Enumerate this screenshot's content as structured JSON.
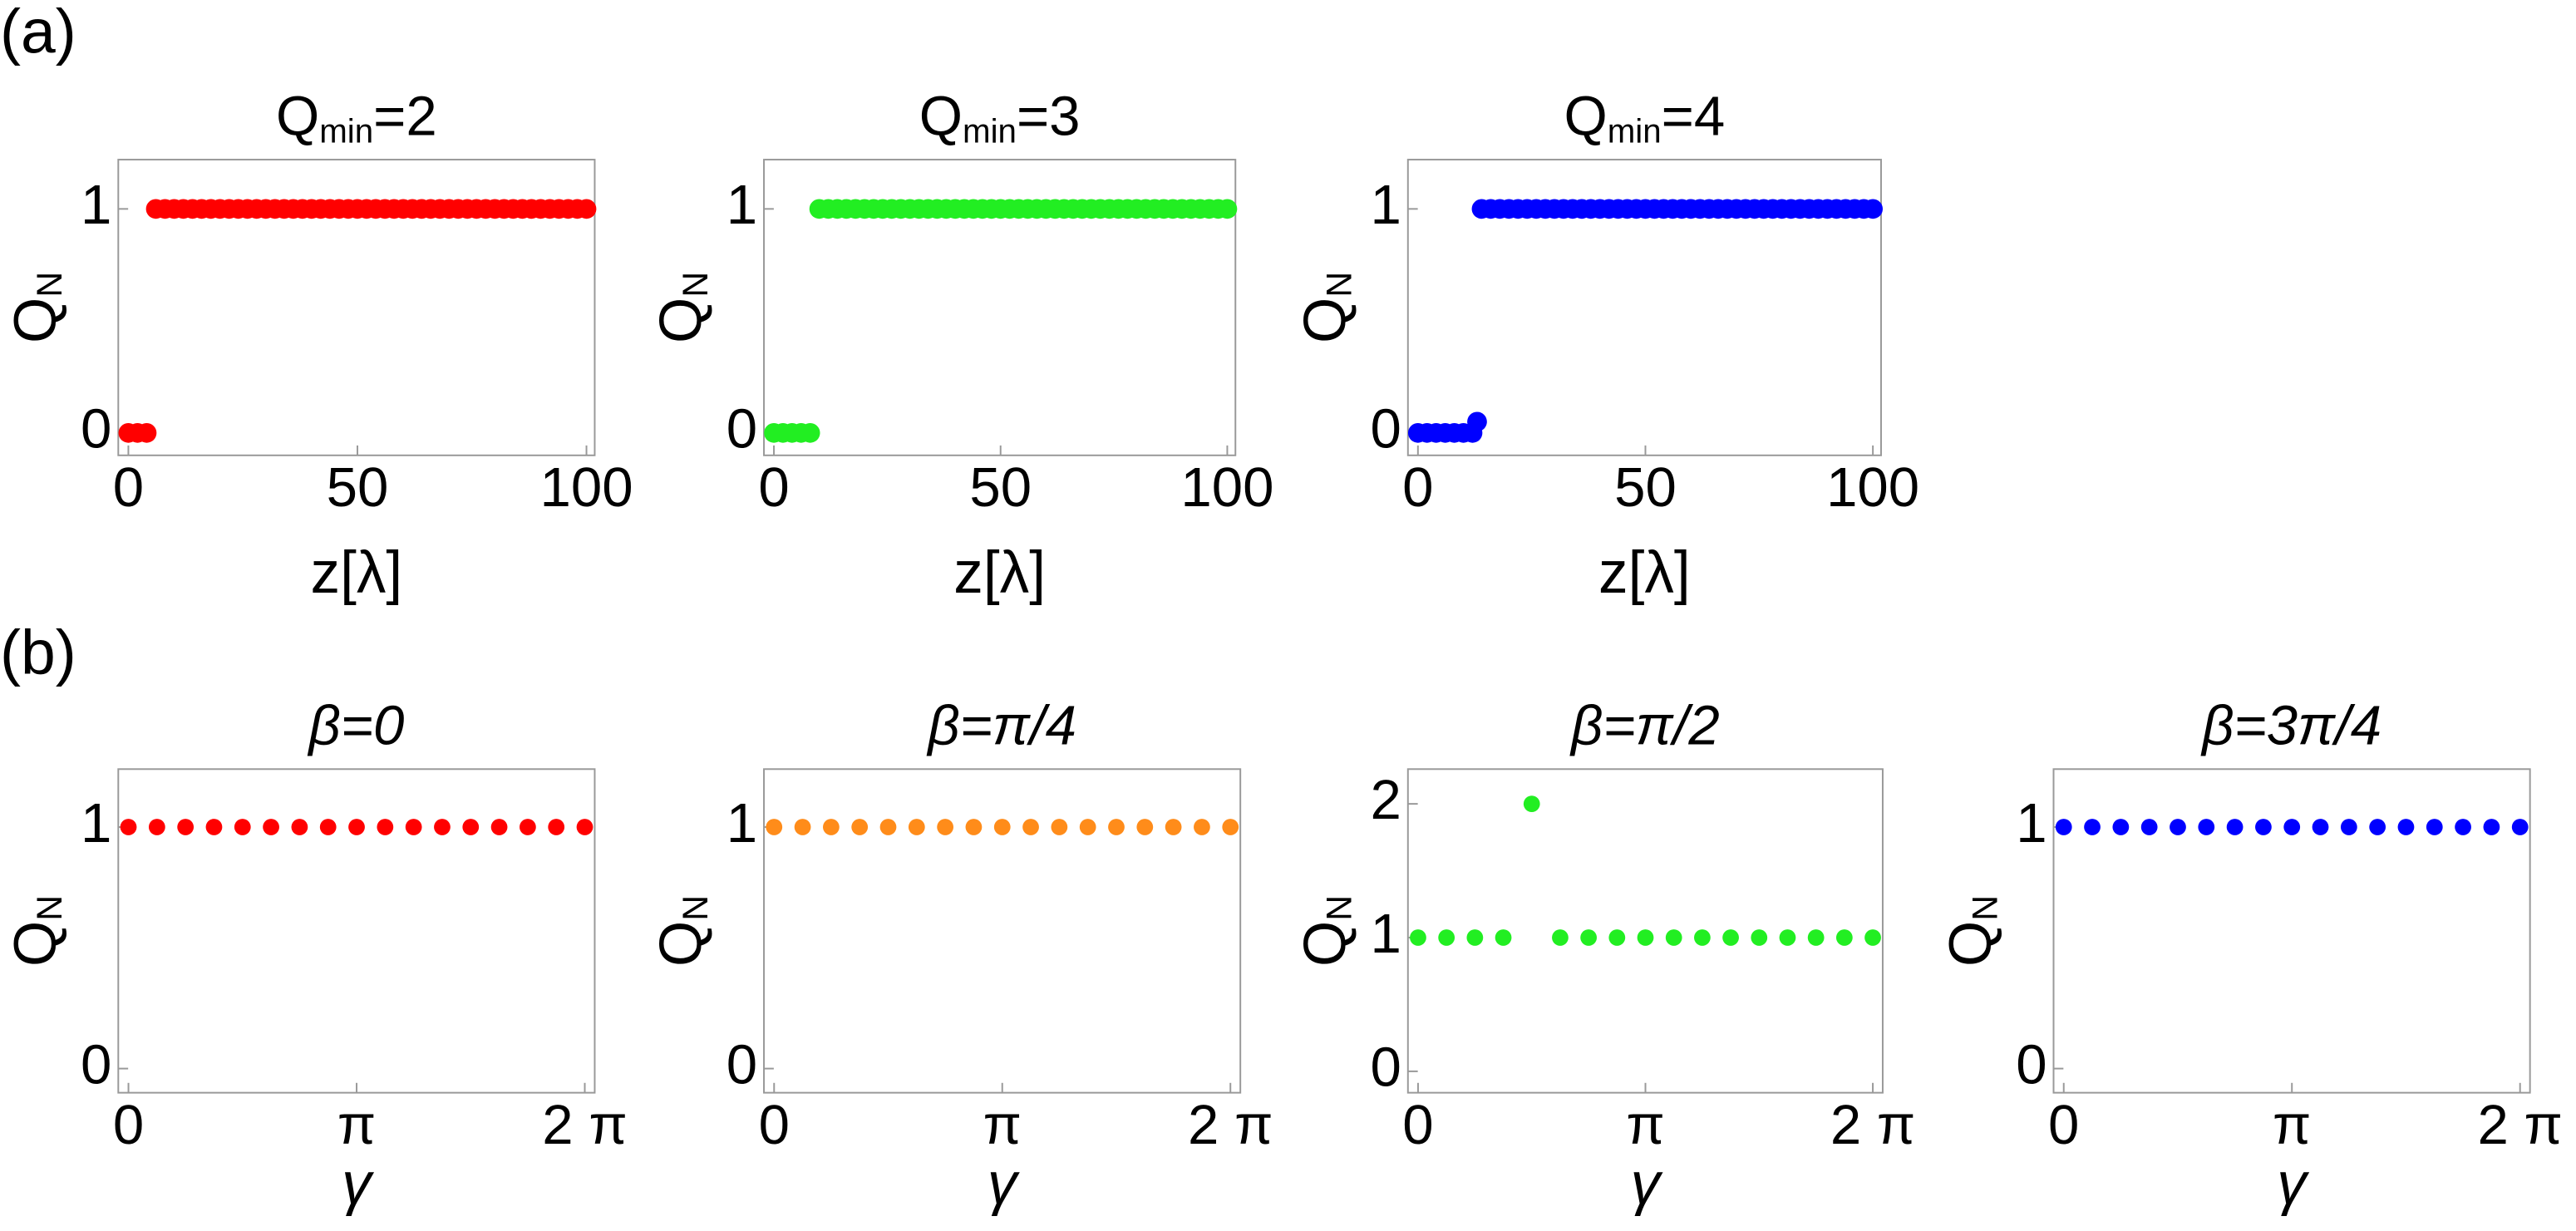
{
  "panel_labels": [
    "(a)",
    "(b)"
  ],
  "chart_data": [
    {
      "type": "scatter",
      "title": [
        "Q",
        "min",
        "=2"
      ],
      "xlabel": "z[λ]",
      "ylabel": [
        "Q",
        "N"
      ],
      "color": "#ff0000",
      "x": [
        0,
        2,
        4,
        6,
        8,
        10,
        12,
        14,
        16,
        18,
        20,
        22,
        24,
        26,
        28,
        30,
        32,
        34,
        36,
        38,
        40,
        42,
        44,
        46,
        48,
        50,
        52,
        54,
        56,
        58,
        60,
        62,
        64,
        66,
        68,
        70,
        72,
        74,
        76,
        78,
        80,
        82,
        84,
        86,
        88,
        90,
        92,
        94,
        96,
        98,
        100
      ],
      "values": [
        0,
        0,
        0,
        1,
        1,
        1,
        1,
        1,
        1,
        1,
        1,
        1,
        1,
        1,
        1,
        1,
        1,
        1,
        1,
        1,
        1,
        1,
        1,
        1,
        1,
        1,
        1,
        1,
        1,
        1,
        1,
        1,
        1,
        1,
        1,
        1,
        1,
        1,
        1,
        1,
        1,
        1,
        1,
        1,
        1,
        1,
        1,
        1,
        1,
        1,
        1
      ],
      "xlim": [
        -2.2,
        101.8
      ],
      "ylim": [
        -0.1,
        1.22
      ],
      "xticks": [
        0,
        50,
        100
      ],
      "yticks": [
        0,
        1
      ]
    },
    {
      "type": "scatter",
      "title": [
        "Q",
        "min",
        "=3"
      ],
      "xlabel": "z[λ]",
      "ylabel": [
        "Q",
        "N"
      ],
      "color": "#22ee22",
      "x": [
        0,
        2,
        4,
        6,
        8,
        10,
        12,
        14,
        16,
        18,
        20,
        22,
        24,
        26,
        28,
        30,
        32,
        34,
        36,
        38,
        40,
        42,
        44,
        46,
        48,
        50,
        52,
        54,
        56,
        58,
        60,
        62,
        64,
        66,
        68,
        70,
        72,
        74,
        76,
        78,
        80,
        82,
        84,
        86,
        88,
        90,
        92,
        94,
        96,
        98,
        100
      ],
      "values": [
        0,
        0,
        0,
        0,
        0,
        1,
        1,
        1,
        1,
        1,
        1,
        1,
        1,
        1,
        1,
        1,
        1,
        1,
        1,
        1,
        1,
        1,
        1,
        1,
        1,
        1,
        1,
        1,
        1,
        1,
        1,
        1,
        1,
        1,
        1,
        1,
        1,
        1,
        1,
        1,
        1,
        1,
        1,
        1,
        1,
        1,
        1,
        1,
        1,
        1,
        1
      ],
      "xlim": [
        -2.2,
        101.8
      ],
      "ylim": [
        -0.1,
        1.22
      ],
      "xticks": [
        0,
        50,
        100
      ],
      "yticks": [
        0,
        1
      ]
    },
    {
      "type": "scatter",
      "title": [
        "Q",
        "min",
        "=4"
      ],
      "xlabel": "z[λ]",
      "ylabel": [
        "Q",
        "N"
      ],
      "color": "#0000ff",
      "x": [
        0,
        2,
        4,
        6,
        8,
        10,
        12,
        13,
        14,
        16,
        18,
        20,
        22,
        24,
        26,
        28,
        30,
        32,
        34,
        36,
        38,
        40,
        42,
        44,
        46,
        48,
        50,
        52,
        54,
        56,
        58,
        60,
        62,
        64,
        66,
        68,
        70,
        72,
        74,
        76,
        78,
        80,
        82,
        84,
        86,
        88,
        90,
        92,
        94,
        96,
        98,
        100
      ],
      "values": [
        0,
        0,
        0,
        0,
        0,
        0,
        0,
        0.05,
        1,
        1,
        1,
        1,
        1,
        1,
        1,
        1,
        1,
        1,
        1,
        1,
        1,
        1,
        1,
        1,
        1,
        1,
        1,
        1,
        1,
        1,
        1,
        1,
        1,
        1,
        1,
        1,
        1,
        1,
        1,
        1,
        1,
        1,
        1,
        1,
        1,
        1,
        1,
        1,
        1,
        1,
        1,
        1
      ],
      "xlim": [
        -2.2,
        101.8
      ],
      "ylim": [
        -0.1,
        1.22
      ],
      "xticks": [
        0,
        50,
        100
      ],
      "yticks": [
        0,
        1
      ]
    },
    {
      "type": "scatter",
      "title": "β=0",
      "xlabel": "γ",
      "ylabel": [
        "Q",
        "N"
      ],
      "color": "#ff0000",
      "x": [
        0,
        0.3927,
        0.7854,
        1.1781,
        1.5708,
        1.9635,
        2.3562,
        2.7489,
        3.1416,
        3.5343,
        3.927,
        4.3197,
        4.7124,
        5.1051,
        5.4978,
        5.8905,
        6.2832
      ],
      "values": [
        1,
        1,
        1,
        1,
        1,
        1,
        1,
        1,
        1,
        1,
        1,
        1,
        1,
        1,
        1,
        1,
        1
      ],
      "xlim": [
        -0.14,
        6.42
      ],
      "ylim": [
        -0.1,
        1.24
      ],
      "xticks": [
        0,
        {
          "value": 3.1416,
          "label": "π"
        },
        {
          "value": 6.2832,
          "label": "2 π"
        }
      ],
      "yticks": [
        0,
        1
      ]
    },
    {
      "type": "scatter",
      "title": "β=π/4",
      "xlabel": "γ",
      "ylabel": [
        "Q",
        "N"
      ],
      "color": "#ff8c1a",
      "x": [
        0,
        0.3927,
        0.7854,
        1.1781,
        1.5708,
        1.9635,
        2.3562,
        2.7489,
        3.1416,
        3.5343,
        3.927,
        4.3197,
        4.7124,
        5.1051,
        5.4978,
        5.8905,
        6.2832
      ],
      "values": [
        1,
        1,
        1,
        1,
        1,
        1,
        1,
        1,
        1,
        1,
        1,
        1,
        1,
        1,
        1,
        1,
        1
      ],
      "xlim": [
        -0.14,
        6.42
      ],
      "ylim": [
        -0.1,
        1.24
      ],
      "xticks": [
        0,
        {
          "value": 3.1416,
          "label": "π"
        },
        {
          "value": 6.2832,
          "label": "2 π"
        }
      ],
      "yticks": [
        0,
        1
      ]
    },
    {
      "type": "scatter",
      "title": "β=π/2",
      "xlabel": "γ",
      "ylabel": [
        "Q",
        "N"
      ],
      "color": "#22ee22",
      "x": [
        0,
        0.3927,
        0.7854,
        1.1781,
        1.5708,
        1.9635,
        2.3562,
        2.7489,
        3.1416,
        3.5343,
        3.927,
        4.3197,
        4.7124,
        5.1051,
        5.4978,
        5.8905,
        6.2832
      ],
      "values": [
        1,
        1,
        1,
        1,
        2,
        1,
        1,
        1,
        1,
        1,
        1,
        1,
        1,
        1,
        1,
        1,
        1
      ],
      "xlim": [
        -0.14,
        6.42
      ],
      "ylim": [
        -0.16,
        2.26
      ],
      "xticks": [
        0,
        {
          "value": 3.1416,
          "label": "π"
        },
        {
          "value": 6.2832,
          "label": "2 π"
        }
      ],
      "yticks": [
        0,
        1,
        2
      ]
    },
    {
      "type": "scatter",
      "title": "β=3π/4",
      "xlabel": "γ",
      "ylabel": [
        "Q",
        "N"
      ],
      "color": "#0000ff",
      "x": [
        0,
        0.3927,
        0.7854,
        1.1781,
        1.5708,
        1.9635,
        2.3562,
        2.7489,
        3.1416,
        3.5343,
        3.927,
        4.3197,
        4.7124,
        5.1051,
        5.4978,
        5.8905,
        6.2832
      ],
      "values": [
        1,
        1,
        1,
        1,
        1,
        1,
        1,
        1,
        1,
        1,
        1,
        1,
        1,
        1,
        1,
        1,
        1
      ],
      "xlim": [
        -0.14,
        6.42
      ],
      "ylim": [
        -0.1,
        1.24
      ],
      "xticks": [
        0,
        {
          "value": 3.1416,
          "label": "π"
        },
        {
          "value": 6.2832,
          "label": "2 π"
        }
      ],
      "yticks": [
        0,
        1
      ]
    }
  ]
}
